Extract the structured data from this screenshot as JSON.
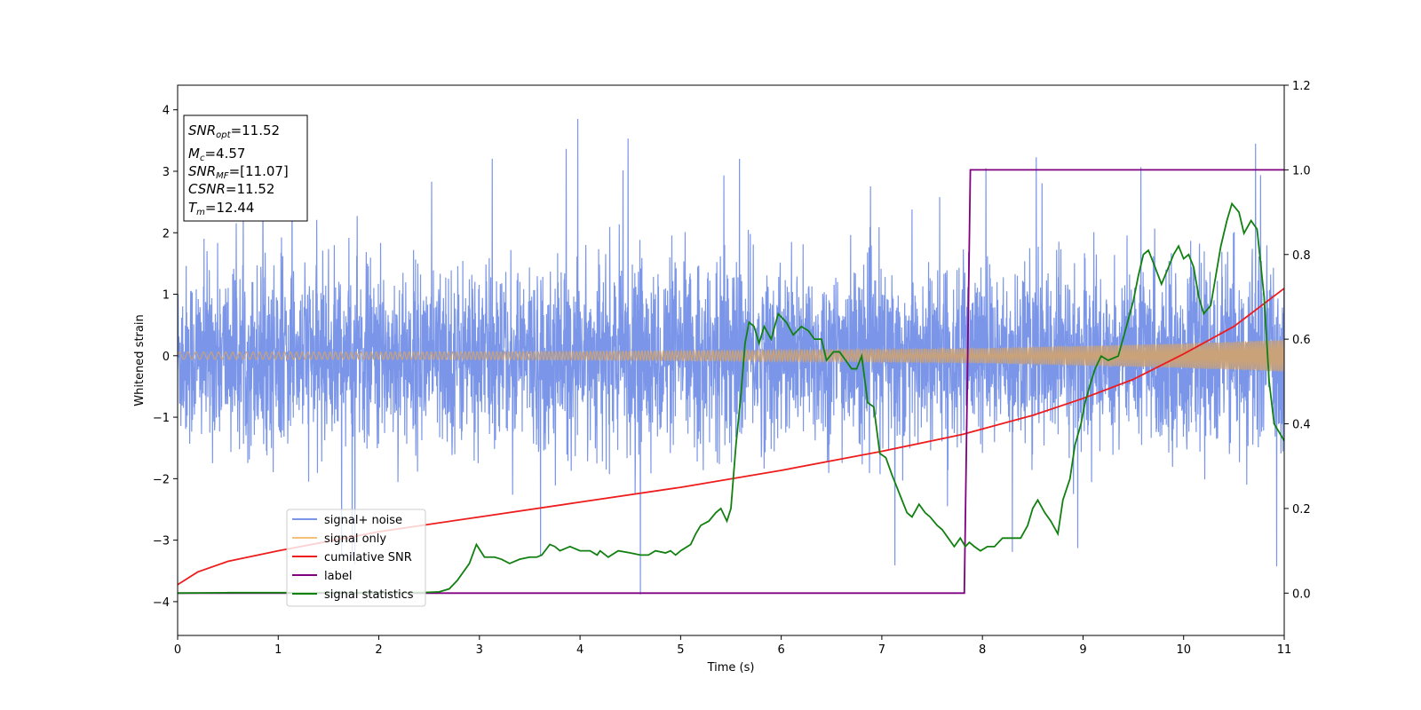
{
  "chart_data": {
    "type": "line",
    "xlabel": "Time (s)",
    "ylabel": "Whitened strain",
    "xlim": [
      0,
      11
    ],
    "ylim_left": [
      -4.55,
      4.4
    ],
    "ylim_right": [
      -0.1,
      1.2
    ],
    "x_ticks": [
      0,
      1,
      2,
      3,
      4,
      5,
      6,
      7,
      8,
      9,
      10,
      11
    ],
    "y_ticks_left": [
      -4,
      -3,
      -2,
      -1,
      0,
      1,
      2,
      3,
      4
    ],
    "y_ticks_right": [
      "0.0",
      "0.2",
      "0.4",
      "0.6",
      "0.8",
      "1.0",
      "1.2"
    ],
    "grid": false,
    "legend_position": "lower-left",
    "colors": {
      "signal_noise": "#7b96e8",
      "signal_only": "#f5c07a",
      "cumulative_snr": "#ee1c1c",
      "label": "#800080",
      "signal_statistics": "#118011"
    },
    "info_box": {
      "snr_opt_main": "SNR",
      "snr_opt_sub": "opt",
      "snr_opt_value": "=11.52",
      "mc_main": "M",
      "mc_sub": "c",
      "mc_value": "=4.57",
      "snr_mf_main": "SNR",
      "snr_mf_sub": "MF",
      "snr_mf_value": "=[11.07]",
      "csnr_main": "CSNR",
      "csnr_value": "=11.52",
      "tm_main": "T",
      "tm_sub": "m",
      "tm_value": "=12.44"
    },
    "series": [
      {
        "name": "signal+ noise",
        "axis": "left",
        "kind": "noise",
        "description_values": {
          "mean": 0,
          "typical_min": -2.0,
          "typical_max": 2.2,
          "peak_max": 4.0,
          "peak_min": -4.2
        }
      },
      {
        "name": "signal only",
        "axis": "left",
        "kind": "chirp",
        "envelope": {
          "x": [
            0,
            2,
            4,
            6,
            8,
            10,
            11
          ],
          "amp": [
            0.06,
            0.06,
            0.07,
            0.09,
            0.12,
            0.2,
            0.26
          ]
        }
      },
      {
        "name": "cumilative SNR",
        "axis": "right",
        "x": [
          0,
          0.2,
          0.5,
          1,
          2,
          3,
          4,
          5,
          6,
          7,
          7.8,
          8.5,
          9,
          9.5,
          10,
          10.5,
          11
        ],
        "y": [
          0.02,
          0.05,
          0.075,
          0.1,
          0.145,
          0.18,
          0.215,
          0.25,
          0.29,
          0.335,
          0.375,
          0.42,
          0.46,
          0.505,
          0.565,
          0.63,
          0.72
        ]
      },
      {
        "name": "label",
        "axis": "right",
        "x": [
          0,
          7.82,
          7.88,
          11
        ],
        "y": [
          0,
          0,
          1,
          1
        ]
      },
      {
        "name": "signal statistics",
        "axis": "right",
        "x": [
          0,
          0.5,
          1,
          1.5,
          2,
          2.3,
          2.5,
          2.6,
          2.7,
          2.78,
          2.9,
          2.97,
          3.05,
          3.15,
          3.22,
          3.3,
          3.4,
          3.5,
          3.57,
          3.62,
          3.7,
          3.75,
          3.8,
          3.9,
          4.0,
          4.05,
          4.1,
          4.17,
          4.2,
          4.28,
          4.38,
          4.5,
          4.6,
          4.68,
          4.75,
          4.85,
          4.9,
          4.95,
          5.0,
          5.1,
          5.15,
          5.2,
          5.28,
          5.35,
          5.4,
          5.46,
          5.5,
          5.55,
          5.6,
          5.64,
          5.68,
          5.73,
          5.78,
          5.83,
          5.9,
          5.97,
          6.05,
          6.12,
          6.2,
          6.27,
          6.33,
          6.4,
          6.45,
          6.52,
          6.58,
          6.64,
          6.7,
          6.75,
          6.8,
          6.86,
          6.92,
          6.98,
          7.04,
          7.1,
          7.15,
          7.2,
          7.25,
          7.3,
          7.37,
          7.43,
          7.48,
          7.55,
          7.6,
          7.66,
          7.72,
          7.78,
          7.83,
          7.87,
          7.92,
          7.98,
          8.05,
          8.12,
          8.2,
          8.25,
          8.3,
          8.38,
          8.45,
          8.5,
          8.55,
          8.62,
          8.68,
          8.75,
          8.8,
          8.87,
          8.92,
          8.98,
          9.02,
          9.08,
          9.12,
          9.18,
          9.25,
          9.35,
          9.42,
          9.5,
          9.55,
          9.6,
          9.65,
          9.7,
          9.78,
          9.85,
          9.9,
          9.95,
          10.0,
          10.05,
          10.1,
          10.15,
          10.2,
          10.27,
          10.32,
          10.37,
          10.43,
          10.48,
          10.55,
          10.6,
          10.67,
          10.73,
          10.8,
          10.85,
          10.9,
          10.95,
          11.0
        ],
        "y": [
          0,
          0.001,
          0.001,
          0.001,
          0.001,
          0.001,
          0.002,
          0.003,
          0.01,
          0.03,
          0.07,
          0.115,
          0.085,
          0.085,
          0.08,
          0.07,
          0.08,
          0.085,
          0.085,
          0.09,
          0.115,
          0.11,
          0.1,
          0.11,
          0.1,
          0.1,
          0.1,
          0.09,
          0.1,
          0.085,
          0.1,
          0.095,
          0.09,
          0.09,
          0.1,
          0.095,
          0.1,
          0.09,
          0.1,
          0.115,
          0.14,
          0.16,
          0.17,
          0.19,
          0.2,
          0.17,
          0.2,
          0.35,
          0.47,
          0.59,
          0.64,
          0.63,
          0.59,
          0.63,
          0.6,
          0.66,
          0.64,
          0.61,
          0.63,
          0.62,
          0.6,
          0.6,
          0.55,
          0.57,
          0.57,
          0.55,
          0.53,
          0.53,
          0.56,
          0.45,
          0.44,
          0.33,
          0.32,
          0.28,
          0.25,
          0.22,
          0.19,
          0.18,
          0.21,
          0.19,
          0.18,
          0.16,
          0.15,
          0.13,
          0.11,
          0.13,
          0.11,
          0.12,
          0.11,
          0.1,
          0.11,
          0.11,
          0.13,
          0.13,
          0.13,
          0.13,
          0.16,
          0.2,
          0.22,
          0.19,
          0.17,
          0.14,
          0.22,
          0.27,
          0.35,
          0.4,
          0.45,
          0.5,
          0.53,
          0.56,
          0.55,
          0.56,
          0.62,
          0.69,
          0.75,
          0.8,
          0.81,
          0.78,
          0.73,
          0.77,
          0.8,
          0.82,
          0.79,
          0.8,
          0.77,
          0.7,
          0.66,
          0.68,
          0.75,
          0.82,
          0.88,
          0.92,
          0.9,
          0.85,
          0.88,
          0.86,
          0.7,
          0.5,
          0.4,
          0.38,
          0.36
        ]
      }
    ]
  }
}
